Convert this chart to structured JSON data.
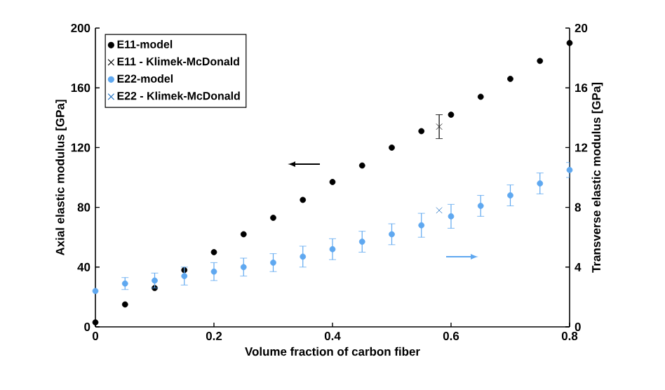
{
  "chart_data": {
    "type": "scatter",
    "xlabel": "Volume fraction of carbon fiber",
    "ylabel": "Axial elastic modulus [GPa]",
    "y2label": "Transverse elastic modulus [GPa]",
    "xlim": [
      0,
      0.8
    ],
    "xticks": [
      0,
      0.2,
      0.4,
      0.6,
      0.8
    ],
    "ylim": [
      0,
      200
    ],
    "yticks": [
      0,
      40,
      80,
      120,
      160,
      200
    ],
    "y2lim": [
      0,
      20
    ],
    "y2ticks": [
      0,
      4,
      8,
      12,
      16,
      20
    ],
    "legend": "top left",
    "grid": false,
    "series": [
      {
        "name": "E11-model",
        "color": "#000000",
        "marker": "circle",
        "x": [
          0,
          0.05,
          0.1,
          0.15,
          0.2,
          0.25,
          0.3,
          0.35,
          0.4,
          0.45,
          0.5,
          0.55,
          0.6,
          0.65,
          0.7,
          0.75,
          0.8
        ],
        "values": [
          3,
          15,
          26,
          38,
          50,
          62,
          73,
          85,
          97,
          108,
          120,
          131,
          142,
          154,
          166,
          178,
          190
        ]
      },
      {
        "name": "E11 - Klimek-McDonald",
        "color": "#000000",
        "marker": "cross",
        "x": [
          0.58
        ],
        "values": [
          134
        ],
        "errors": [
          8
        ]
      },
      {
        "name": "E22-model",
        "color": "#5fa8f0",
        "marker": "circle",
        "axis": "y2",
        "x": [
          0,
          0.05,
          0.1,
          0.15,
          0.2,
          0.25,
          0.3,
          0.35,
          0.4,
          0.45,
          0.5,
          0.55,
          0.6,
          0.65,
          0.7,
          0.75,
          0.8
        ],
        "values": [
          2.4,
          2.9,
          3.1,
          3.4,
          3.7,
          4.0,
          4.3,
          4.7,
          5.2,
          5.7,
          6.2,
          6.8,
          7.4,
          8.1,
          8.8,
          9.6,
          10.5
        ],
        "errors": [
          null,
          0.4,
          0.5,
          0.6,
          0.6,
          0.6,
          0.6,
          0.7,
          0.7,
          0.7,
          0.7,
          0.8,
          0.8,
          0.7,
          0.7,
          0.7,
          0.5
        ]
      },
      {
        "name": "E22 - Klimek-McDonald",
        "color": "#1f6fbf",
        "marker": "cross",
        "axis": "y2",
        "x": [
          0.58
        ],
        "values": [
          7.8
        ]
      }
    ]
  }
}
